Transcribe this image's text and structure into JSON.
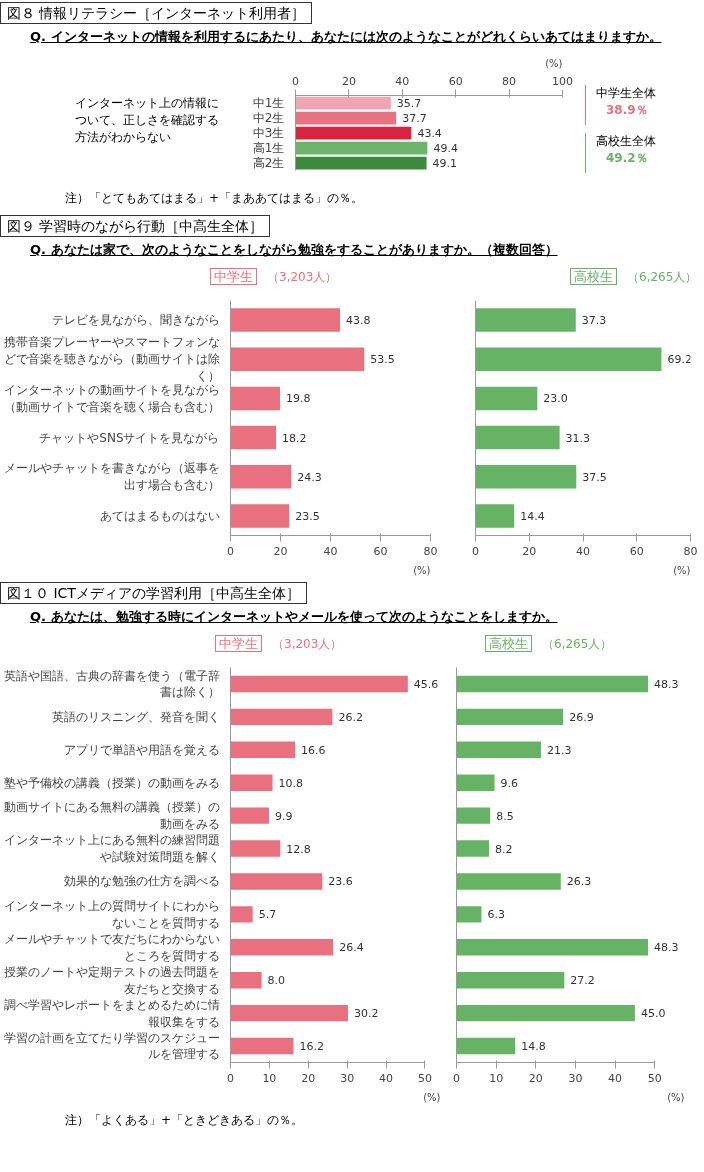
{
  "chart_data": [
    {
      "type": "bar",
      "orientation": "horizontal",
      "title": "図８ 情報リテラシー［インターネット利用者］",
      "subtitle": "Q. インターネットの情報を利用するにあたり、あなたには次のようなことがどれくらいあてはまりますか。",
      "ylabel": "インターネット上の情報について、正しさを確認する方法がわからない",
      "xlabel": "(%)",
      "categories": [
        "中1生",
        "中2生",
        "中3生",
        "高1生",
        "高2生"
      ],
      "values": [
        35.7,
        37.7,
        43.4,
        49.4,
        49.1
      ],
      "value_labels": [
        "35.7",
        "37.7",
        "43.4",
        "49.4",
        "49.1"
      ],
      "colors": [
        "#f0a6b2",
        "#e8727f",
        "#d8253f",
        "#6ab56a",
        "#3d8a3d"
      ],
      "xlim": [
        0,
        100
      ],
      "xticks": [
        0,
        20,
        40,
        60,
        80,
        100
      ],
      "annotations": [
        "中学生全体",
        "38.9％",
        "高校生全体",
        "49.2％",
        "注）「とてもあてはまる」+「まああてはまる」の％。"
      ]
    },
    {
      "type": "bar",
      "orientation": "horizontal",
      "title": "図９ 学習時のながら行動［中高生全体］",
      "subtitle": "Q. あなたは家で、次のようなことをしながら勉強をすることがありますか。（複数回答）",
      "xlabel": "(%)",
      "categories": [
        "テレビを見ながら、聞きながら",
        "携帯音楽プレーヤーやスマートフォンなどで音楽を聴きながら（動画サイトは除く）",
        "インターネットの動画サイトを見ながら（動画サイトで音楽を聴く場合も含む）",
        "チャットやSNSサイトを見ながら",
        "メールやチャットを書きながら（返事を出す場合も含む）",
        "あてはまるものはない"
      ],
      "series": [
        {
          "name": "中学生",
          "color": "#e8707f",
          "values": [
            43.8,
            53.5,
            19.8,
            18.2,
            24.3,
            23.5
          ],
          "value_labels": [
            "43.8",
            "53.5",
            "19.8",
            "18.2",
            "24.3",
            "23.5"
          ]
        }
      ],
      "xlim": [
        0,
        80
      ],
      "xticks": [
        0,
        20,
        40,
        60,
        80
      ],
      "annotations": [
        "（3,203人）"
      ]
    },
    {
      "type": "bar",
      "orientation": "horizontal",
      "xlabel": "(%)",
      "tick_labels": "x",
      "categories": [
        "テレビを見ながら、聞きながら",
        "携帯音楽プレーヤーやスマートフォンなどで音楽を聴きながら（動画サイトは除く）",
        "インターネットの動画サイトを見ながら（動画サイトで音楽を聴く場合も含む）",
        "チャットやSNSサイトを見ながら",
        "メールやチャットを書きながら（返事を出す場合も含む）",
        "あてはまるものはない"
      ],
      "series": [
        {
          "name": "高校生",
          "color": "#66b366",
          "values": [
            37.3,
            69.2,
            23.0,
            31.3,
            37.5,
            14.4
          ],
          "value_labels": [
            "37.3",
            "69.2",
            "23.0",
            "31.3",
            "37.5",
            "14.4"
          ]
        }
      ],
      "xlim": [
        0,
        80
      ],
      "xticks": [
        0,
        20,
        40,
        60,
        80
      ],
      "annotations": [
        "（6,265人）"
      ]
    },
    {
      "type": "bar",
      "orientation": "horizontal",
      "title": "図１０ ICTメディアの学習利用［中高生全体］",
      "subtitle": "Q. あなたは、勉強する時にインターネットやメールを使って次のようなことをしますか。",
      "xlabel": "(%)",
      "categories": [
        "英語や国語、古典の辞書を使う（電子辞書は除く）",
        "英語のリスニング、発音を聞く",
        "アプリで単語や用語を覚える",
        "塾や予備校の講義（授業）の動画をみる",
        "動画サイトにある無料の講義（授業）の動画をみる",
        "インターネット上にある無料の練習問題や試験対策問題を解く",
        "効果的な勉強の仕方を調べる",
        "インターネット上の質問サイトにわからないことを質問する",
        "メールやチャットで友だちにわからないところを質問する",
        "授業のノートや定期テストの過去問題を友だちと交換する",
        "調べ学習やレポートをまとめるために情報収集をする",
        "学習の計画を立てたり学習のスケジュールを管理する"
      ],
      "series": [
        {
          "name": "中学生",
          "color": "#e8707f",
          "values": [
            45.6,
            26.2,
            16.6,
            10.8,
            9.9,
            12.8,
            23.6,
            5.7,
            26.4,
            8.0,
            30.2,
            16.2
          ],
          "value_labels": [
            "45.6",
            "26.2",
            "16.6",
            "10.8",
            "9.9",
            "12.8",
            "23.6",
            "5.7",
            "26.4",
            "8.0",
            "30.2",
            "16.2"
          ]
        }
      ],
      "xlim": [
        0,
        50
      ],
      "xticks": [
        0,
        10,
        20,
        30,
        40,
        50
      ],
      "annotations": [
        "（3,203人）",
        "注）「よくある」+「ときどきある」の％。"
      ]
    },
    {
      "type": "bar",
      "orientation": "horizontal",
      "xlabel": "(%)",
      "tick_labels": "x",
      "categories": [
        "英語や国語、古典の辞書を使う（電子辞書は除く）",
        "英語のリスニング、発音を聞く",
        "アプリで単語や用語を覚える",
        "塾や予備校の講義（授業）の動画をみる",
        "動画サイトにある無料の講義（授業）の動画をみる",
        "インターネット上にある無料の練習問題や試験対策問題を解く",
        "効果的な勉強の仕方を調べる",
        "インターネット上の質問サイトにわからないことを質問する",
        "メールやチャットで友だちにわからないところを質問する",
        "授業のノートや定期テストの過去問題を友だちと交換する",
        "調べ学習やレポートをまとめるために情報収集をする",
        "学習の計画を立てたり学習のスケジュールを管理する"
      ],
      "series": [
        {
          "name": "高校生",
          "color": "#66b366",
          "values": [
            48.3,
            26.9,
            21.3,
            9.6,
            8.5,
            8.2,
            26.3,
            6.3,
            48.3,
            27.2,
            45.0,
            14.8
          ],
          "value_labels": [
            "48.3",
            "26.9",
            "21.3",
            "9.6",
            "8.5",
            "8.2",
            "26.3",
            "6.3",
            "48.3",
            "27.2",
            "45.0",
            "14.8"
          ]
        }
      ],
      "xlim": [
        0,
        50
      ],
      "xticks": [
        0,
        10,
        20,
        30,
        40,
        50
      ],
      "annotations": [
        "（6,265人）"
      ]
    }
  ]
}
